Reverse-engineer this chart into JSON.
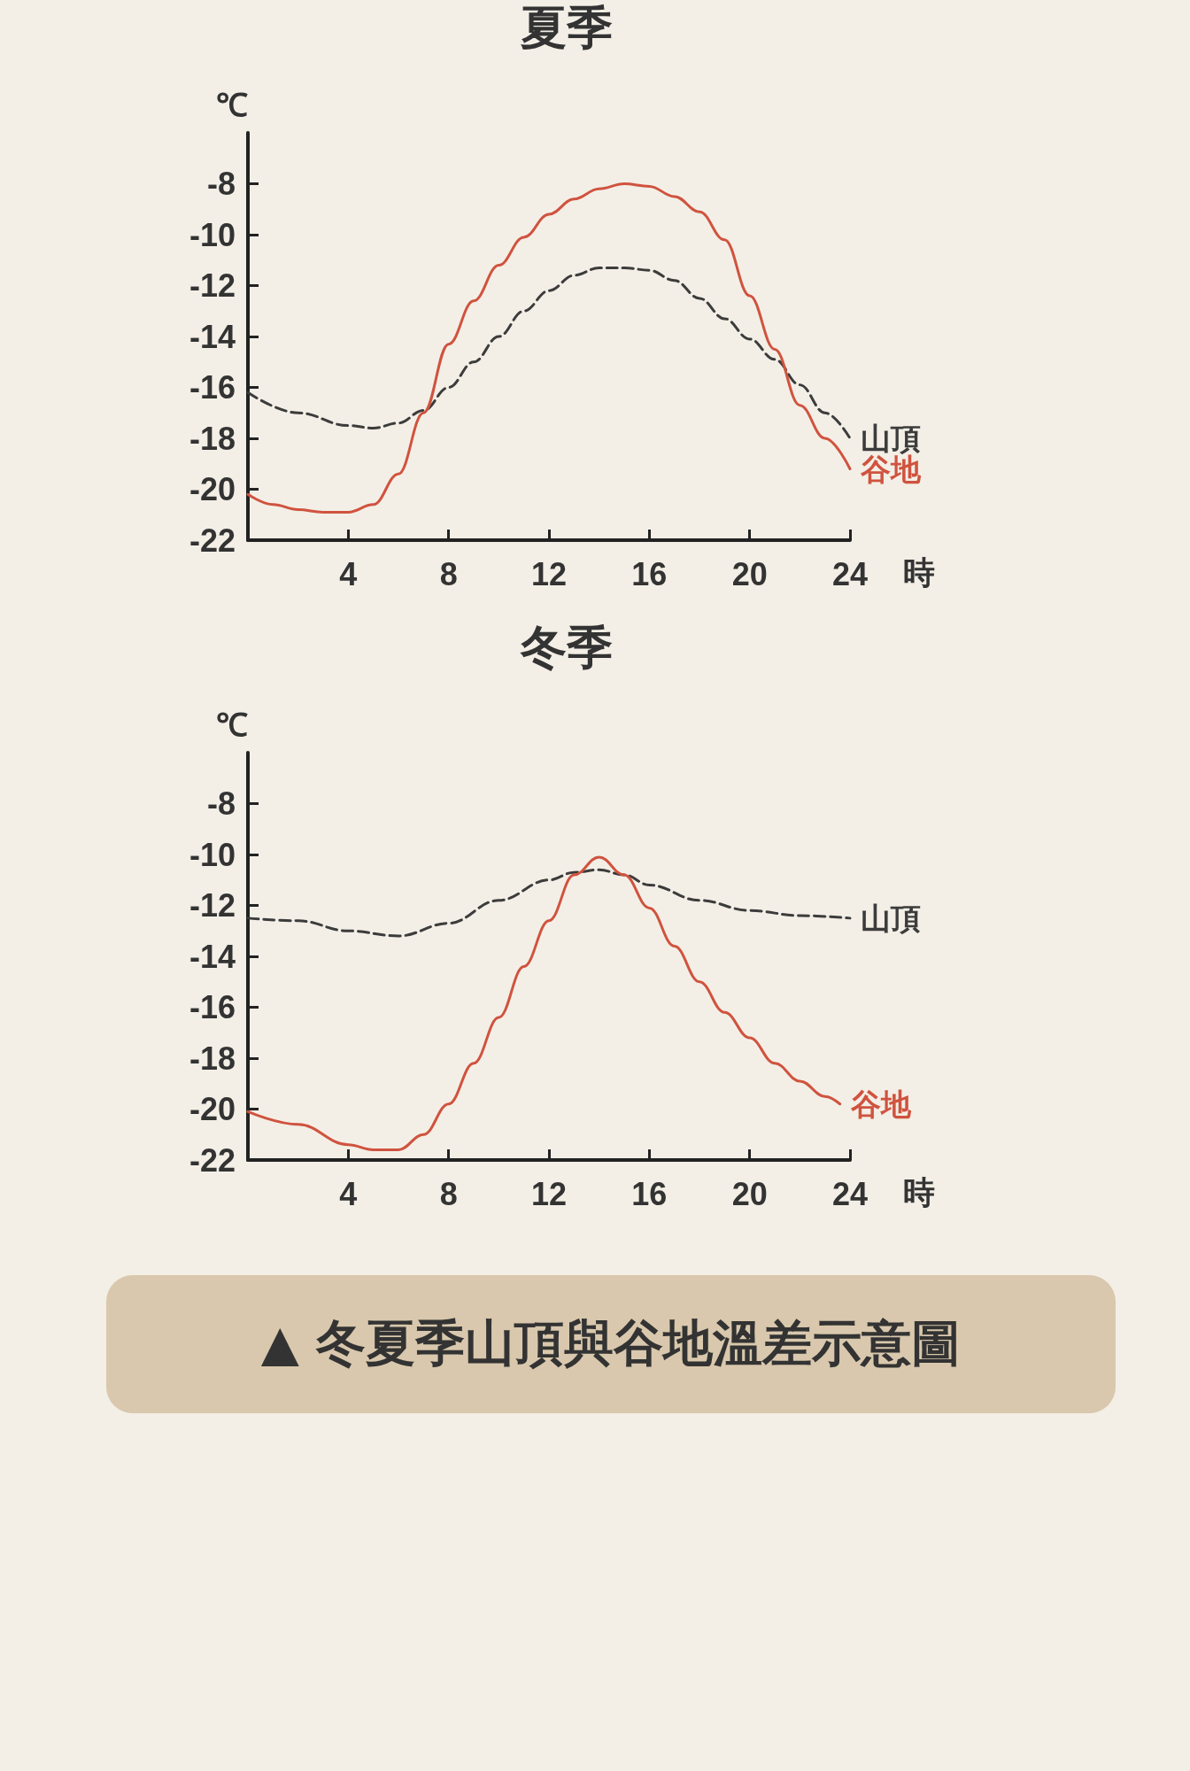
{
  "chart_data": [
    {
      "type": "line",
      "title": "夏季",
      "ylabel": "℃",
      "xlabel": "時",
      "xlim": [
        0,
        24
      ],
      "xticks": [
        4,
        8,
        12,
        16,
        20,
        24
      ],
      "ylim": [
        -22,
        -6
      ],
      "yticks": [
        -22,
        -20,
        -18,
        -16,
        -14,
        -12,
        -10,
        -8
      ],
      "grid": false,
      "legend": false,
      "marker": "none",
      "series": [
        {
          "name": "山頂",
          "color": "#3c3c3c",
          "line_style": "dashed",
          "x": [
            0,
            2,
            4,
            5,
            6,
            7,
            8,
            9,
            10,
            11,
            12,
            13,
            14,
            15,
            16,
            17,
            18,
            19,
            20,
            21,
            22,
            23,
            24
          ],
          "values": [
            -16.2,
            -17,
            -17.5,
            -17.6,
            -17.4,
            -16.9,
            -16,
            -15,
            -14,
            -13,
            -12.2,
            -11.6,
            -11.3,
            -11.3,
            -11.4,
            -11.8,
            -12.5,
            -13.3,
            -14.1,
            -14.9,
            -15.9,
            -17,
            -18
          ]
        },
        {
          "name": "谷地",
          "color": "#d0533f",
          "line_style": "solid",
          "x": [
            0,
            1,
            2,
            3,
            4,
            5,
            6,
            7,
            8,
            9,
            10,
            11,
            12,
            13,
            14,
            15,
            16,
            17,
            18,
            19,
            20,
            21,
            22,
            23,
            24
          ],
          "values": [
            -20.2,
            -20.6,
            -20.8,
            -20.9,
            -20.9,
            -20.6,
            -19.4,
            -17,
            -14.3,
            -12.6,
            -11.2,
            -10.1,
            -9.2,
            -8.6,
            -8.2,
            -8,
            -8.1,
            -8.5,
            -9.1,
            -10.2,
            -12.4,
            -14.5,
            -16.7,
            -18,
            -19.2
          ]
        }
      ]
    },
    {
      "type": "line",
      "title": "冬季",
      "ylabel": "℃",
      "xlabel": "時",
      "xlim": [
        0,
        24
      ],
      "xticks": [
        4,
        8,
        12,
        16,
        20,
        24
      ],
      "ylim": [
        -22,
        -6
      ],
      "yticks": [
        -22,
        -20,
        -18,
        -16,
        -14,
        -12,
        -10,
        -8
      ],
      "grid": false,
      "legend": false,
      "marker": "none",
      "annotations": [
        "▲ 冬夏季山頂與谷地溫差示意圖"
      ],
      "series": [
        {
          "name": "山頂",
          "color": "#3c3c3c",
          "line_style": "dashed",
          "x": [
            0,
            2,
            4,
            6,
            8,
            10,
            12,
            13,
            14,
            15,
            16,
            18,
            20,
            22,
            24
          ],
          "values": [
            -12.5,
            -12.6,
            -13,
            -13.2,
            -12.7,
            -11.8,
            -11,
            -10.7,
            -10.6,
            -10.8,
            -11.2,
            -11.8,
            -12.2,
            -12.4,
            -12.5
          ]
        },
        {
          "name": "谷地",
          "color": "#d0533f",
          "line_style": "solid",
          "x": [
            0,
            2,
            4,
            5,
            6,
            7,
            8,
            9,
            10,
            11,
            12,
            13,
            14,
            15,
            16,
            17,
            18,
            19,
            20,
            21,
            22,
            23,
            23.6
          ],
          "values": [
            -20.1,
            -20.6,
            -21.4,
            -21.6,
            -21.6,
            -21,
            -19.8,
            -18.2,
            -16.4,
            -14.4,
            -12.6,
            -10.8,
            -10.1,
            -10.8,
            -12.1,
            -13.6,
            -15,
            -16.2,
            -17.2,
            -18.2,
            -18.9,
            -19.5,
            -19.8
          ]
        }
      ]
    }
  ]
}
